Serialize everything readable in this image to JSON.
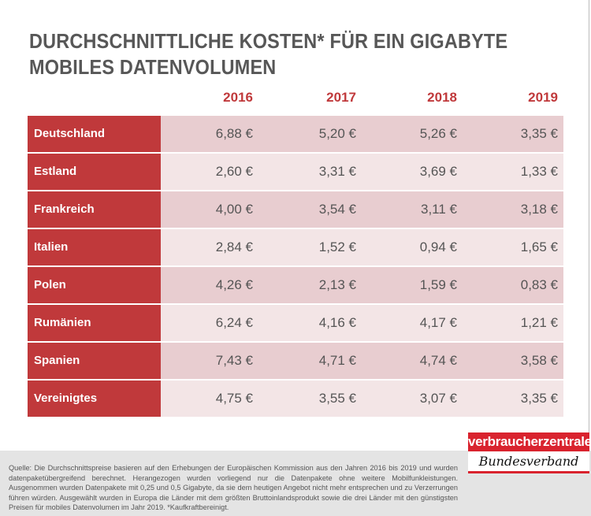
{
  "title_lines": [
    "DURCHSCHNITTLICHE KOSTEN* FÜR EIN GIGABYTE",
    "MOBILES DATENVOLUMEN"
  ],
  "years": [
    "2016",
    "2017",
    "2018",
    "2019"
  ],
  "rows": [
    {
      "country": "Deutschland",
      "values": [
        "6,88 €",
        "5,20 €",
        "5,26 €",
        "3,35 €"
      ]
    },
    {
      "country": "Estland",
      "values": [
        "2,60 €",
        "3,31 €",
        "3,69 €",
        "1,33 €"
      ]
    },
    {
      "country": "Frankreich",
      "values": [
        "4,00 €",
        "3,54 €",
        "3,11 €",
        "3,18 €"
      ]
    },
    {
      "country": "Italien",
      "values": [
        "2,84 €",
        "1,52 €",
        "0,94 €",
        "1,65 €"
      ]
    },
    {
      "country": "Polen",
      "values": [
        "4,26 €",
        "2,13 €",
        "1,59 €",
        "0,83 €"
      ]
    },
    {
      "country": "Rumänien",
      "values": [
        "6,24 €",
        "4,16 €",
        "4,17 €",
        "1,21 €"
      ]
    },
    {
      "country": "Spanien",
      "values": [
        "7,43 €",
        "4,71 €",
        "4,74 €",
        "3,58 €"
      ]
    },
    {
      "country": "Vereinigtes Königreich",
      "values": [
        "4,75 €",
        "3,55 €",
        "3,07 €",
        "3,35 €"
      ]
    }
  ],
  "footer": "Quelle: Die Durchschnittspreise basieren auf den Erhebungen der Europäischen Kommission aus den Jahren 2016 bis 2019 und wurden datenpaketübergreifend berechnet. Herangezogen wurden vorliegend nur die Datenpakete ohne weitere Mobilfunkleistungen. Ausgenommen wurden Datenpakete mit 0,25 und 0,5 Gigabyte, da sie dem heutigen Angebot nicht mehr entsprechen und zu Verzerrungen führen würden. Ausgewählt wurden in Europa die Länder mit dem größten Bruttoinlandsprodukt sowie die drei Länder mit den günstigsten Preisen für mobiles Datenvolumen im Jahr 2019. *Kaufkraftbereinigt.",
  "logo": {
    "top": "verbraucherzentrale",
    "bottom": "Bundesverband"
  },
  "colors": {
    "accent": "#c0393b",
    "row_dark": "#e8cdd0",
    "row_light": "#f3e5e6",
    "logo_red": "#d9232e"
  }
}
